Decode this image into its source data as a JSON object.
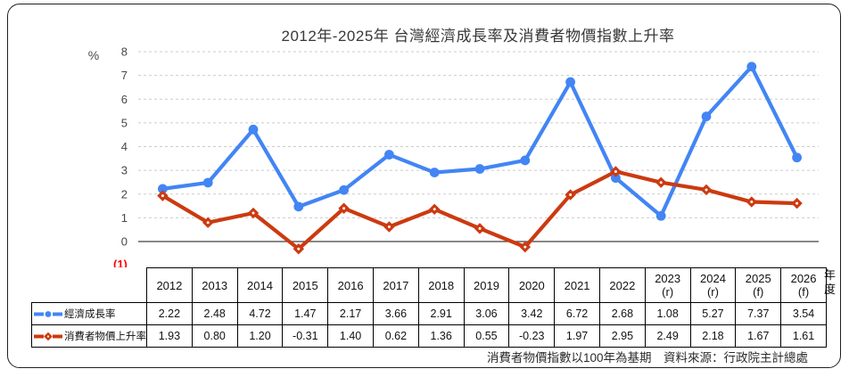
{
  "title": "2012年-2025年 台灣經濟成長率及消費者物價指數上升率",
  "table_note": "(1)",
  "year_axis_label": "年度",
  "footnote": "消費者物價指數以100年為基期　資料來源：行政院主計總處",
  "colors": {
    "grid": "#cbcbcb",
    "zero_axis": "#404040",
    "tick_text": "#474747",
    "card_border": "#1f1f1f",
    "note_red": "#fe0000"
  },
  "chart_data": {
    "type": "line",
    "title": "2012年-2025年 台灣經濟成長率及消費者物價指數上升率",
    "ylabel": "%",
    "ylim": [
      -0.6,
      8
    ],
    "yticks": [
      0,
      1,
      2,
      3,
      4,
      5,
      6,
      7,
      8
    ],
    "grid": "horizontal-dashed",
    "legend_position": "table-first-column",
    "categories": [
      "2012",
      "2013",
      "2014",
      "2015",
      "2016",
      "2017",
      "2018",
      "2019",
      "2020",
      "2021",
      "2022",
      "2023",
      "2024",
      "2025",
      "2026"
    ],
    "category_notes": [
      "",
      "",
      "",
      "",
      "",
      "",
      "",
      "",
      "",
      "",
      "",
      "(r)",
      "(r)",
      "(f)",
      "(f)"
    ],
    "series": [
      {
        "name": "經濟成長率",
        "color": "#4285f4",
        "marker": "circle",
        "values": [
          2.22,
          2.48,
          4.72,
          1.47,
          2.17,
          3.66,
          2.91,
          3.06,
          3.42,
          6.72,
          2.68,
          1.08,
          5.27,
          7.37,
          3.54
        ]
      },
      {
        "name": "消費者物價上升率",
        "color": "#cc3a10",
        "marker": "diamond",
        "values": [
          1.93,
          0.8,
          1.2,
          -0.31,
          1.4,
          0.62,
          1.36,
          0.55,
          -0.23,
          1.97,
          2.95,
          2.49,
          2.18,
          1.67,
          1.61
        ]
      }
    ]
  }
}
